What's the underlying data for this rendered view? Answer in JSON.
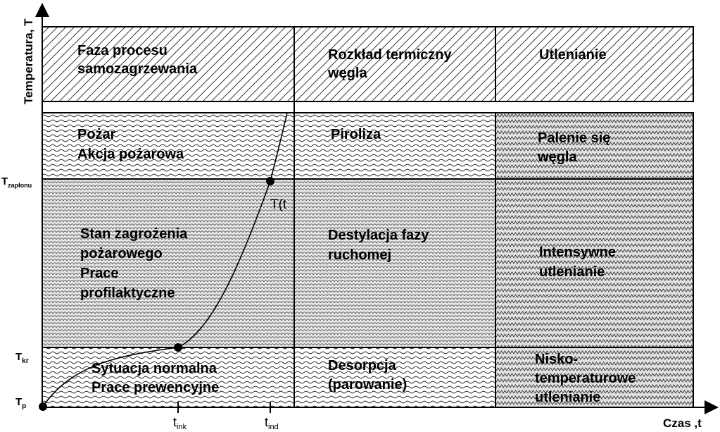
{
  "axes": {
    "y_label": "Temperatura, T",
    "x_label": "Czas ,t",
    "y_ticks": [
      {
        "main": "T",
        "sub": "zapłonu"
      },
      {
        "main": "T",
        "sub": "kr"
      },
      {
        "main": "T",
        "sub": "p"
      }
    ],
    "x_ticks": [
      {
        "main": "t",
        "sub": "ink"
      },
      {
        "main": "t",
        "sub": "ind"
      }
    ]
  },
  "header": {
    "col1": [
      "Faza procesu",
      "samozagrzewania"
    ],
    "col2": [
      "Rozkład termiczny",
      "węgla"
    ],
    "col3": [
      "Utlenianie"
    ]
  },
  "rows": {
    "fire": {
      "col1": [
        "Pożar",
        "Akcja pożarowa"
      ],
      "col2": [
        "Piroliza"
      ],
      "col3": [
        "Palenie się",
        "węgla"
      ]
    },
    "danger": {
      "col1": [
        "Stan zagrożenia",
        "pożarowego",
        "Prace",
        "profilaktyczne"
      ],
      "col2": [
        "Destylacja fazy",
        "ruchomej"
      ],
      "col3": [
        "Intensywne",
        "utlenianie"
      ]
    },
    "normal": {
      "col1": [
        "Sytuacja normalna",
        "Prace prewencyjne"
      ],
      "col2": [
        "Desorpcja",
        "(parowanie)"
      ],
      "col3": [
        "Nisko-",
        "temperaturowe",
        "utlenianie"
      ]
    }
  },
  "curve": {
    "label": "T(t"
  }
}
